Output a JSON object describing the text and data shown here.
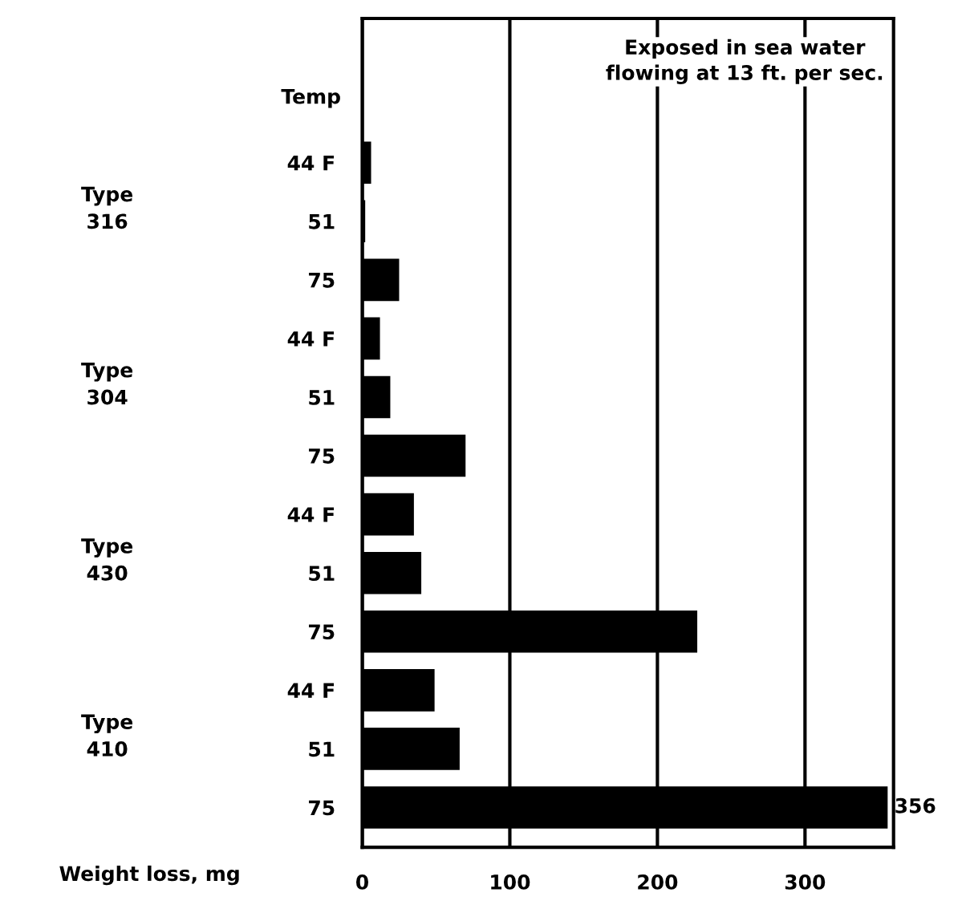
{
  "chart_data": {
    "type": "bar",
    "orientation": "horizontal",
    "categories": [
      "44 F",
      "51",
      "75",
      "44 F",
      "51",
      "75",
      "44 F",
      "51",
      "75",
      "44 F",
      "51",
      "75"
    ],
    "values": [
      6,
      2,
      25,
      12,
      19,
      70,
      35,
      40,
      227,
      49,
      66,
      356
    ],
    "value_labels": [
      null,
      null,
      null,
      null,
      null,
      null,
      null,
      null,
      null,
      null,
      null,
      "356"
    ],
    "color": "#000000",
    "xlim": [
      0,
      360
    ],
    "xticks": [
      0,
      100,
      200,
      300
    ],
    "grid": "x",
    "xlabel": "Weight loss, mg",
    "annotations": [
      "Temp",
      "Type\n316",
      "Type\n304",
      "Type\n430",
      "Type\n410",
      "Exposed in sea water\nflowing at 13 ft. per sec."
    ]
  }
}
